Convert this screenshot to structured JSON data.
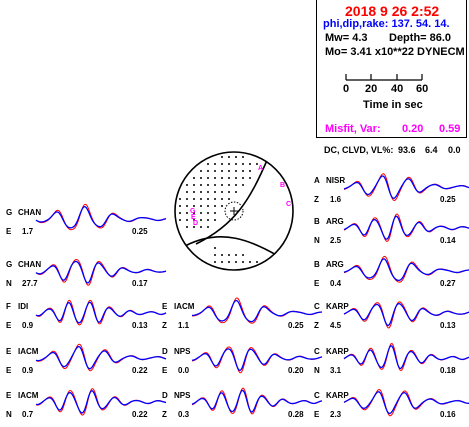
{
  "header": {
    "datetime": "2018  9 26    2:52",
    "angles": "phi,dip,rake: 137. 54.  14.",
    "mw": "Mw=  4.3",
    "depth": "Depth=     86.0",
    "mo": "Mo=  3.41 x10**22 DYNECM",
    "time_axis_ticks": [
      "0",
      "20",
      "40",
      "60"
    ],
    "time_axis_label": "Time  in sec",
    "misfit_label": "Misfit, Var:",
    "misfit_value": "0.20",
    "var_value": "0.59",
    "dc_label": "DC, CLVD, VL%:",
    "dc": "93.6",
    "clvd": "6.4",
    "vl": "0.0"
  },
  "colors": {
    "title_red": "#ff0000",
    "angles_blue": "#0000ff",
    "misfit_magenta": "#ff00ff",
    "observed": "#0000ff",
    "synthetic": "#ff0000",
    "station_marks": "#ff00ff"
  },
  "beachball_labels": [
    "A",
    "B",
    "C",
    "G",
    "E",
    "D"
  ],
  "traces": [
    {
      "net": "G",
      "station": "CHAN",
      "comp": "E",
      "dist": "1.7",
      "fit": "0.25"
    },
    {
      "net": "G",
      "station": "CHAN",
      "comp": "N",
      "dist": "27.7",
      "fit": "0.17"
    },
    {
      "net": "F",
      "station": "IDI",
      "comp": "E",
      "dist": "0.9",
      "fit": "0.13"
    },
    {
      "net": "E",
      "station": "IACM",
      "comp": "E",
      "dist": "0.9",
      "fit": "0.22"
    },
    {
      "net": "E",
      "station": "IACM",
      "comp": "N",
      "dist": "0.7",
      "fit": "0.22"
    },
    {
      "net": "E",
      "station": "IACM",
      "comp": "Z",
      "dist": "1.1",
      "fit": "0.25"
    },
    {
      "net": "D",
      "station": "NPS",
      "comp": "E",
      "dist": "0.0",
      "fit": "0.20"
    },
    {
      "net": "D",
      "station": "NPS",
      "comp": "Z",
      "dist": "0.3",
      "fit": "0.28"
    },
    {
      "net": "A",
      "station": "NISR",
      "comp": "Z",
      "dist": "1.6",
      "fit": "0.25"
    },
    {
      "net": "B",
      "station": "ARG",
      "comp": "N",
      "dist": "2.5",
      "fit": "0.14"
    },
    {
      "net": "B",
      "station": "ARG",
      "comp": "E",
      "dist": "0.4",
      "fit": "0.27"
    },
    {
      "net": "C",
      "station": "KARP",
      "comp": "Z",
      "dist": "4.5",
      "fit": "0.13"
    },
    {
      "net": "C",
      "station": "KARP",
      "comp": "N",
      "dist": "3.1",
      "fit": "0.18"
    },
    {
      "net": "C",
      "station": "KARP",
      "comp": "E",
      "dist": "2.3",
      "fit": "0.16"
    }
  ]
}
